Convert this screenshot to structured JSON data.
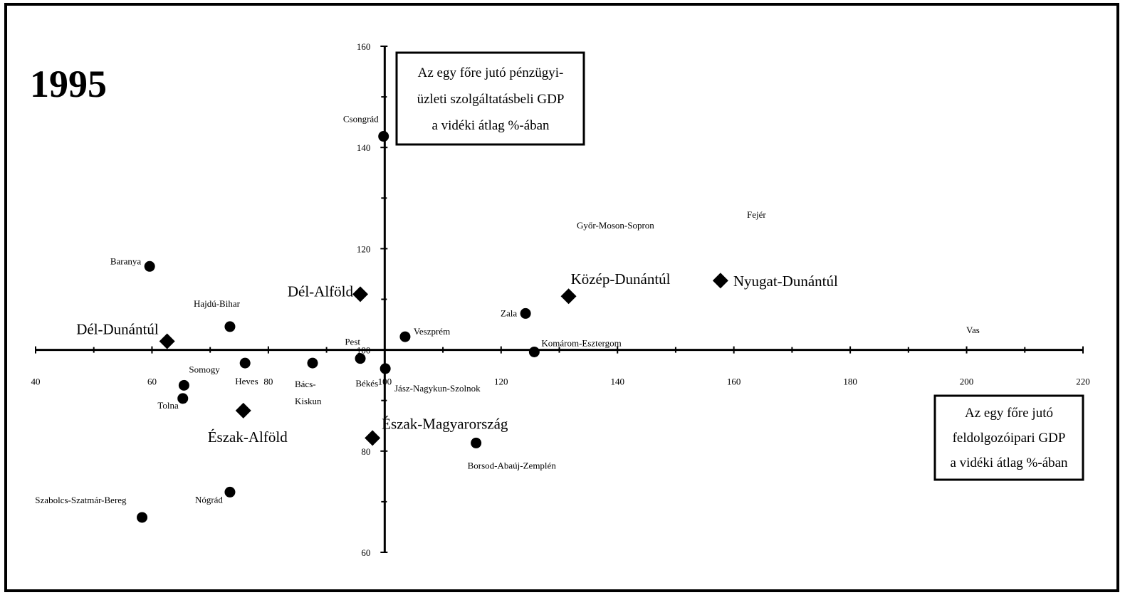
{
  "chart_data": {
    "type": "scatter",
    "title": "1995",
    "x_axis": {
      "label_lines": [
        "Az egy főre jutó",
        "feldolgozóipari GDP",
        "a vidéki átlag %-ában"
      ],
      "range": [
        40,
        220
      ],
      "ticks": [
        40,
        60,
        80,
        100,
        120,
        140,
        160,
        180,
        200,
        220
      ],
      "tick_labels": [
        "40",
        "60",
        "80",
        "100",
        "120",
        "140",
        "160",
        "180",
        "200",
        "220"
      ]
    },
    "y_axis": {
      "label_lines": [
        "Az egy főre jutó pénzügyi-",
        "üzleti szolgáltatásbeli GDP",
        "a vidéki átlag %-ában"
      ],
      "range": [
        60,
        160
      ],
      "ticks": [
        60,
        80,
        100,
        120,
        140,
        160
      ],
      "tick_labels": [
        "60",
        "80",
        "100",
        "120",
        "140",
        "160"
      ]
    },
    "axes_cross_at": [
      100,
      100
    ],
    "grid": false,
    "counties": [
      {
        "label": "Csongrád",
        "x": 99.8,
        "y": 142.2
      },
      {
        "label": "Baranya",
        "x": 59.6,
        "y": 116.5
      },
      {
        "label": "Hajdú-Bihar",
        "x": 73.4,
        "y": 104.6
      },
      {
        "label": "Pest",
        "x": 95.8,
        "y": 98.3
      },
      {
        "label": "Veszprém",
        "x": 103.5,
        "y": 102.6
      },
      {
        "label": "Zala",
        "x": 124.2,
        "y": 107.2
      },
      {
        "label": "Komárom-Esztergom",
        "x": 125.7,
        "y": 99.6
      },
      {
        "label": "Győr-Moson-Sopron",
        "x": null,
        "y": null
      },
      {
        "label": "Fejér",
        "x": null,
        "y": null
      },
      {
        "label": "Vas",
        "x": null,
        "y": null
      },
      {
        "label": "Somogy",
        "x": 65.5,
        "y": 93.0
      },
      {
        "label": "Tolna",
        "x": 65.3,
        "y": 90.4
      },
      {
        "label": "Heves",
        "x": 76.0,
        "y": 97.4
      },
      {
        "label": "Bács-Kiskun",
        "x": 87.6,
        "y": 97.4
      },
      {
        "label": "Békés",
        "x": 100.1,
        "y": 96.3
      },
      {
        "label": "Jász-Nagykun-Szolnok",
        "x": null,
        "y": null
      },
      {
        "label": "Borsod-Abaúj-Zemplén",
        "x": 115.7,
        "y": 81.6
      },
      {
        "label": "Nógrád",
        "x": 73.4,
        "y": 71.9
      },
      {
        "label": "Szabolcs-Szatmár-Bereg",
        "x": 58.3,
        "y": 66.9
      }
    ],
    "regions": [
      {
        "label": "Dél-Alföld",
        "x": 95.8,
        "y": 111.0
      },
      {
        "label": "Közép-Dunántúl",
        "x": 131.6,
        "y": 110.6
      },
      {
        "label": "Nyugat-Dunántúl",
        "x": 157.7,
        "y": 113.7
      },
      {
        "label": "Dél-Dunántúl",
        "x": 62.6,
        "y": 101.7
      },
      {
        "label": "Észak-Alföld",
        "x": 75.7,
        "y": 88.0
      },
      {
        "label": "Észak-Magyarország",
        "x": 97.9,
        "y": 82.6
      }
    ]
  }
}
